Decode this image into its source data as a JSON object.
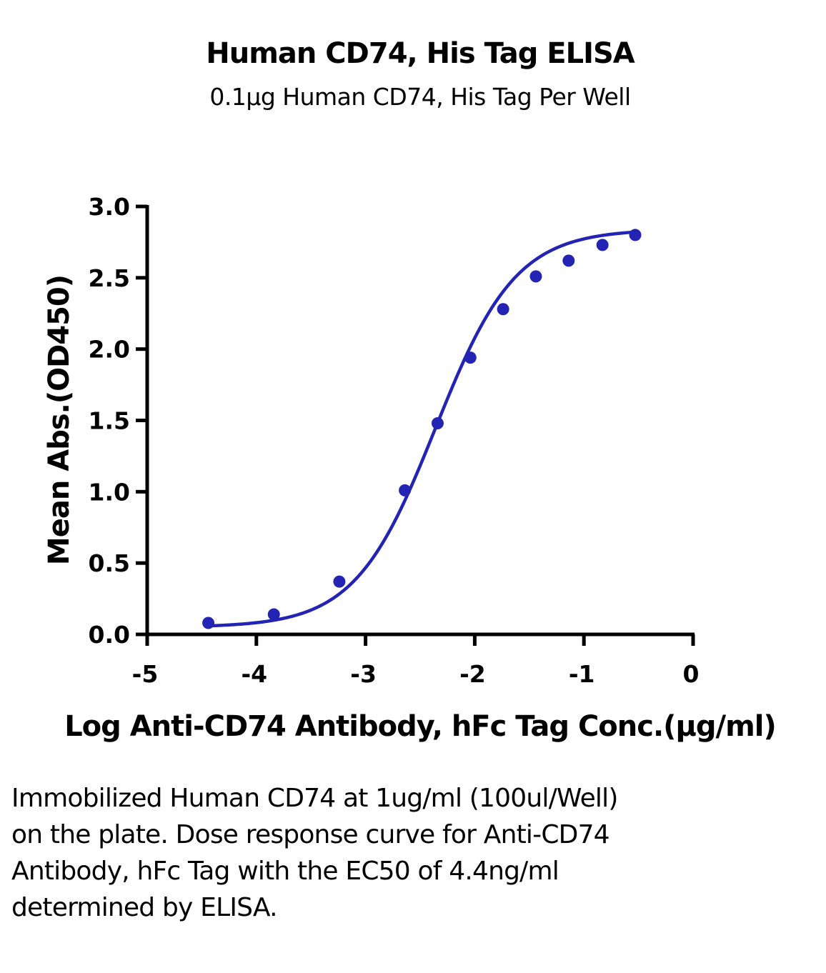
{
  "chart_data": {
    "type": "scatter",
    "title": "Human CD74, His Tag ELISA",
    "subtitle": "0.1μg Human CD74, His Tag Per Well",
    "xlabel": "Log Anti-CD74 Antibody, hFc Tag Conc.(μg/ml)",
    "ylabel": "Mean Abs.(OD450)",
    "xlim": [
      -5,
      0
    ],
    "ylim": [
      0,
      3.0
    ],
    "x_ticks": [
      "-5",
      "-4",
      "-3",
      "-2",
      "-1",
      "0"
    ],
    "y_ticks": [
      "0.0",
      "0.5",
      "1.0",
      "1.5",
      "2.0",
      "2.5",
      "3.0"
    ],
    "grid": false,
    "color": "#2323b4",
    "series": [
      {
        "x": [
          -4.44,
          -3.84,
          -3.24,
          -2.64,
          -2.34,
          -2.04,
          -1.74,
          -1.44,
          -1.14,
          -0.83,
          -0.53
        ],
        "y": [
          0.08,
          0.14,
          0.37,
          1.01,
          1.48,
          1.94,
          2.28,
          2.51,
          2.62,
          2.73,
          2.8
        ]
      }
    ],
    "fit_curve": {
      "model": "4PL",
      "bottom": 0.05,
      "top": 2.84,
      "log_ec50": -2.36,
      "hill_slope": 1.18
    }
  },
  "caption": "Immobilized Human CD74 at 1ug/ml (100ul/Well) on the plate. Dose response curve for Anti-CD74 Antibody, hFc Tag with the EC50 of 4.4ng/ml determined by ELISA."
}
